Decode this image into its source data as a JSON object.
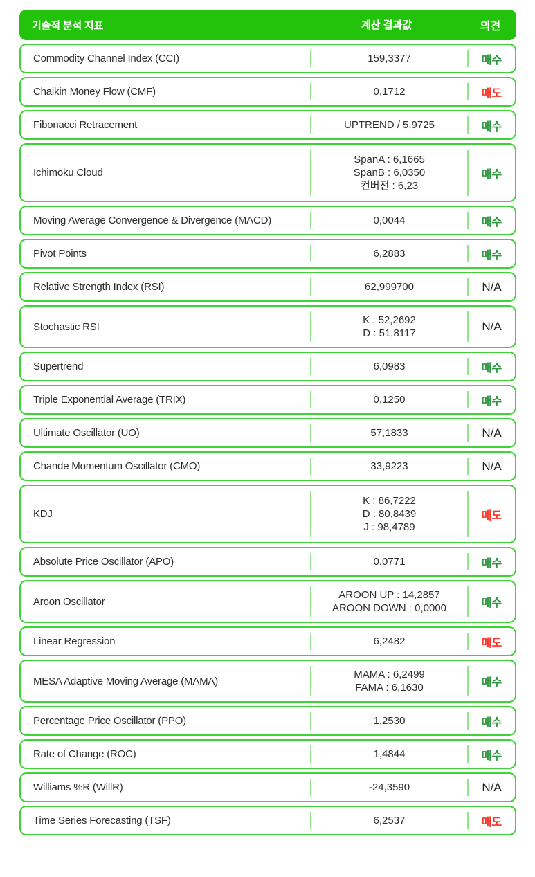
{
  "colors": {
    "header_background": "#23c30c",
    "row_border": "#3fd435",
    "column_divider": "#8fe787",
    "buy_text": "#2f9640",
    "sell_text": "#fb352b",
    "na_text": "#1f1f1f"
  },
  "table": {
    "header": {
      "indicator": "기술적 분석 지표",
      "value": "계산 결과값",
      "opinion": "의견"
    },
    "opinion_labels": {
      "buy": "매수",
      "sell": "매도",
      "na": "N/A"
    },
    "rows": [
      {
        "name": "Commodity Channel Index (CCI)",
        "value_lines": [
          "159,3377"
        ],
        "opinion": "매수",
        "opinion_type": "buy"
      },
      {
        "name": "Chaikin Money Flow (CMF)",
        "value_lines": [
          "0,1712"
        ],
        "opinion": "매도",
        "opinion_type": "sell"
      },
      {
        "name": "Fibonacci Retracement",
        "value_lines": [
          "UPTREND / 5,9725"
        ],
        "opinion": "매수",
        "opinion_type": "buy"
      },
      {
        "name": "Ichimoku Cloud",
        "value_lines": [
          "SpanA : 6,1665",
          "SpanB : 6,0350",
          "컨버전 : 6,23"
        ],
        "opinion": "매수",
        "opinion_type": "buy"
      },
      {
        "name": "Moving Average Convergence & Divergence (MACD)",
        "value_lines": [
          "0,0044"
        ],
        "opinion": "매수",
        "opinion_type": "buy"
      },
      {
        "name": "Pivot Points",
        "value_lines": [
          "6,2883"
        ],
        "opinion": "매수",
        "opinion_type": "buy"
      },
      {
        "name": "Relative Strength Index (RSI)",
        "value_lines": [
          "62,999700"
        ],
        "opinion": "N/A",
        "opinion_type": "na"
      },
      {
        "name": "Stochastic RSI",
        "value_lines": [
          "K : 52,2692",
          "D : 51,8117"
        ],
        "opinion": "N/A",
        "opinion_type": "na"
      },
      {
        "name": "Supertrend",
        "value_lines": [
          "6,0983"
        ],
        "opinion": "매수",
        "opinion_type": "buy"
      },
      {
        "name": "Triple Exponential Average (TRIX)",
        "value_lines": [
          "0,1250"
        ],
        "opinion": "매수",
        "opinion_type": "buy"
      },
      {
        "name": "Ultimate Oscillator (UO)",
        "value_lines": [
          "57,1833"
        ],
        "opinion": "N/A",
        "opinion_type": "na"
      },
      {
        "name": "Chande Momentum Oscillator (CMO)",
        "value_lines": [
          "33,9223"
        ],
        "opinion": "N/A",
        "opinion_type": "na"
      },
      {
        "name": "KDJ",
        "value_lines": [
          "K : 86,7222",
          "D : 80,8439",
          "J : 98,4789"
        ],
        "opinion": "매도",
        "opinion_type": "sell"
      },
      {
        "name": "Absolute Price Oscillator (APO)",
        "value_lines": [
          "0,0771"
        ],
        "opinion": "매수",
        "opinion_type": "buy"
      },
      {
        "name": "Aroon Oscillator",
        "value_lines": [
          "AROON UP : 14,2857",
          "AROON DOWN : 0,0000"
        ],
        "opinion": "매수",
        "opinion_type": "buy"
      },
      {
        "name": "Linear Regression",
        "value_lines": [
          "6,2482"
        ],
        "opinion": "매도",
        "opinion_type": "sell"
      },
      {
        "name": "MESA Adaptive Moving Average (MAMA)",
        "value_lines": [
          "MAMA : 6,2499",
          "FAMA : 6,1630"
        ],
        "opinion": "매수",
        "opinion_type": "buy"
      },
      {
        "name": "Percentage Price Oscillator (PPO)",
        "value_lines": [
          "1,2530"
        ],
        "opinion": "매수",
        "opinion_type": "buy"
      },
      {
        "name": "Rate of Change (ROC)",
        "value_lines": [
          "1,4844"
        ],
        "opinion": "매수",
        "opinion_type": "buy"
      },
      {
        "name": "Williams %R (WillR)",
        "value_lines": [
          "-24,3590"
        ],
        "opinion": "N/A",
        "opinion_type": "na"
      },
      {
        "name": "Time Series Forecasting (TSF)",
        "value_lines": [
          "6,2537"
        ],
        "opinion": "매도",
        "opinion_type": "sell"
      }
    ]
  }
}
